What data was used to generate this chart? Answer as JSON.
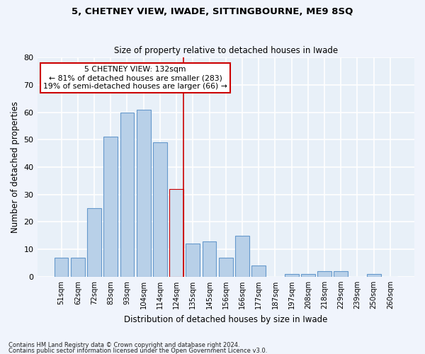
{
  "title1": "5, CHETNEY VIEW, IWADE, SITTINGBOURNE, ME9 8SQ",
  "title2": "Size of property relative to detached houses in Iwade",
  "xlabel": "Distribution of detached houses by size in Iwade",
  "ylabel": "Number of detached properties",
  "categories": [
    "51sqm",
    "62sqm",
    "72sqm",
    "83sqm",
    "93sqm",
    "104sqm",
    "114sqm",
    "124sqm",
    "135sqm",
    "145sqm",
    "156sqm",
    "166sqm",
    "177sqm",
    "187sqm",
    "197sqm",
    "208sqm",
    "218sqm",
    "229sqm",
    "239sqm",
    "250sqm",
    "260sqm"
  ],
  "values": [
    7,
    7,
    25,
    51,
    60,
    61,
    49,
    32,
    12,
    13,
    7,
    15,
    4,
    0,
    1,
    1,
    2,
    2,
    0,
    1,
    0
  ],
  "bar_color": "#b8d0e8",
  "bar_edge_color": "#6699cc",
  "highlight_bar_index": 7,
  "highlight_bar_color": "#d0e0f0",
  "highlight_bar_edge_color": "#cc0000",
  "vline_color": "#cc0000",
  "annotation_text": "5 CHETNEY VIEW: 132sqm\n← 81% of detached houses are smaller (283)\n19% of semi-detached houses are larger (66) →",
  "annotation_box_facecolor": "#ffffff",
  "annotation_box_edgecolor": "#cc0000",
  "ylim": [
    0,
    80
  ],
  "yticks": [
    0,
    10,
    20,
    30,
    40,
    50,
    60,
    70,
    80
  ],
  "background_color": "#e8f0f8",
  "grid_color": "#ffffff",
  "fig_facecolor": "#f0f4fc",
  "footer1": "Contains HM Land Registry data © Crown copyright and database right 2024.",
  "footer2": "Contains public sector information licensed under the Open Government Licence v3.0."
}
